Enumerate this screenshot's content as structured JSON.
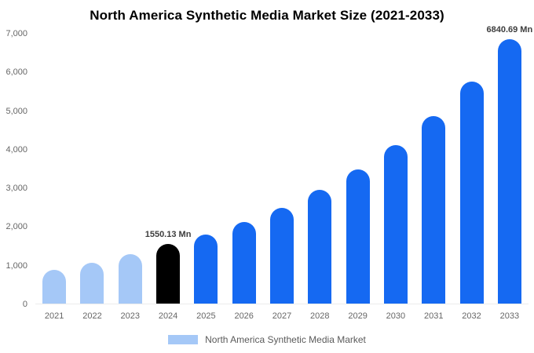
{
  "title": "North America Synthetic Media Market Size (2021-2033)",
  "legend": {
    "label": "North America Synthetic Media Market",
    "swatch_color": "#a5c8f7"
  },
  "colors": {
    "light_blue": "#a5c8f7",
    "highlight_black": "#000000",
    "primary_blue": "#1569f2",
    "background": "#ffffff"
  },
  "chart_data": {
    "type": "bar",
    "title": "North America Synthetic Media Market Size (2021-2033)",
    "xlabel": "",
    "ylabel": "",
    "categories": [
      "2021",
      "2022",
      "2023",
      "2024",
      "2025",
      "2026",
      "2027",
      "2028",
      "2029",
      "2030",
      "2031",
      "2032",
      "2033"
    ],
    "values": [
      880,
      1060,
      1270,
      1550.13,
      1790,
      2110,
      2480,
      2950,
      3470,
      4100,
      4850,
      5750,
      6840.69
    ],
    "bar_colors": [
      "#a5c8f7",
      "#a5c8f7",
      "#a5c8f7",
      "#000000",
      "#1569f2",
      "#1569f2",
      "#1569f2",
      "#1569f2",
      "#1569f2",
      "#1569f2",
      "#1569f2",
      "#1569f2",
      "#1569f2"
    ],
    "point_labels": [
      "",
      "",
      "",
      "1550.13 Mn",
      "",
      "",
      "",
      "",
      "",
      "",
      "",
      "",
      "6840.69 Mn"
    ],
    "ylim": [
      0,
      7000
    ],
    "yticks": [
      0,
      1000,
      2000,
      3000,
      4000,
      5000,
      6000,
      7000
    ],
    "ytick_labels": [
      "0",
      "1,000",
      "2,000",
      "3,000",
      "4,000",
      "5,000",
      "6,000",
      "7,000"
    ],
    "grid": false,
    "legend_position": "bottom",
    "legend_entries": [
      "North America Synthetic Media Market"
    ]
  }
}
